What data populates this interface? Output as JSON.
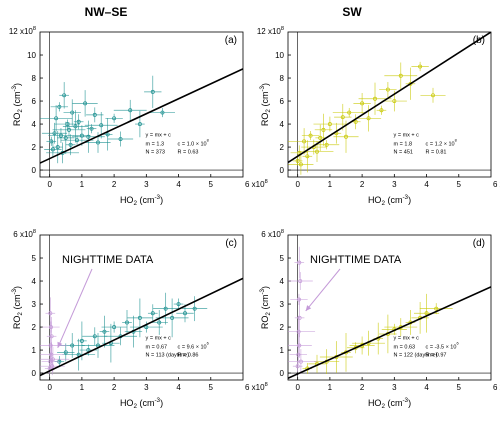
{
  "headers": {
    "left": "NW–SE",
    "right": "SW"
  },
  "colors": {
    "teal": "#1a8f8f",
    "yellow": "#c8c800",
    "night": "#c49ad8",
    "fit": "#000000"
  },
  "chart_data": [
    {
      "type": "scatter",
      "panel_label": "(a)",
      "xlabel_main": "HO",
      "xlabel_sub": "2",
      "xlabel_unit": "(cm",
      "xlabel_exp": "-3",
      "xlabel_close": ")",
      "ylabel_main": "RO",
      "ylabel_sub": "2",
      "ylabel_unit": "(cm",
      "ylabel_exp": "-3",
      "ylabel_close": ")",
      "x_multiplier": "6 x10",
      "x_mult_exp": "8",
      "y_multiplier": "12 x10",
      "y_mult_exp": "8",
      "xlim": [
        -0.3,
        6.0
      ],
      "ylim": [
        -0.6,
        12.0
      ],
      "xticks": [
        "0",
        "1",
        "2",
        "3",
        "4",
        "5"
      ],
      "xtick_vals": [
        0,
        1,
        2,
        3,
        4,
        5
      ],
      "yticks": [
        "0",
        "2",
        "4",
        "6",
        "8",
        "10"
      ],
      "ytick_vals": [
        0,
        2,
        4,
        6,
        8,
        10
      ],
      "fit": {
        "m": 1.3,
        "c": 1.0
      },
      "eq_text": "y = mx + c",
      "m_text": "m = 1.3",
      "c_text": "c = 1.0 × 10",
      "c_exp": "8",
      "n_text": "N = 373",
      "r_text": "R = 0.63",
      "series": [
        {
          "color_key": "teal",
          "points": [
            [
              0.05,
              2.5
            ],
            [
              0.1,
              1.8
            ],
            [
              0.15,
              3.2
            ],
            [
              0.2,
              4.5
            ],
            [
              0.25,
              2.0
            ],
            [
              0.3,
              5.5
            ],
            [
              0.35,
              3.0
            ],
            [
              0.4,
              1.5
            ],
            [
              0.45,
              6.5
            ],
            [
              0.5,
              2.8
            ],
            [
              0.55,
              4.0
            ],
            [
              0.6,
              3.5
            ],
            [
              0.65,
              2.2
            ],
            [
              0.7,
              5.0
            ],
            [
              0.8,
              3.8
            ],
            [
              0.85,
              2.6
            ],
            [
              0.9,
              4.2
            ],
            [
              1.0,
              3.0
            ],
            [
              1.1,
              5.8
            ],
            [
              1.2,
              2.9
            ],
            [
              1.3,
              3.6
            ],
            [
              1.4,
              4.8
            ],
            [
              1.5,
              2.4
            ],
            [
              1.6,
              3.9
            ],
            [
              1.8,
              3.1
            ],
            [
              2.0,
              4.5
            ],
            [
              2.2,
              2.7
            ],
            [
              2.5,
              5.2
            ],
            [
              2.8,
              4.0
            ],
            [
              3.2,
              6.8
            ],
            [
              3.5,
              5.0
            ]
          ]
        }
      ]
    },
    {
      "type": "scatter",
      "panel_label": "(b)",
      "xlabel_main": "HO",
      "xlabel_sub": "2",
      "xlabel_unit": "(cm",
      "xlabel_exp": "-3",
      "xlabel_close": ")",
      "ylabel_main": "RO",
      "ylabel_sub": "2",
      "ylabel_unit": "(cm",
      "ylabel_exp": "-3",
      "ylabel_close": ")",
      "x_multiplier": "6 x10",
      "x_mult_exp": "8",
      "y_multiplier": "12 x10",
      "y_mult_exp": "8",
      "xlim": [
        -0.3,
        6.0
      ],
      "ylim": [
        -0.6,
        12.0
      ],
      "xticks": [
        "0",
        "1",
        "2",
        "3",
        "4",
        "5"
      ],
      "xtick_vals": [
        0,
        1,
        2,
        3,
        4,
        5
      ],
      "yticks": [
        "0",
        "2",
        "4",
        "6",
        "8",
        "10"
      ],
      "ytick_vals": [
        0,
        2,
        4,
        6,
        8,
        10
      ],
      "fit": {
        "m": 1.8,
        "c": 1.2
      },
      "eq_text": "y = mx + c",
      "m_text": "m = 1.8",
      "c_text": "c = 1.2 × 10",
      "c_exp": "8",
      "n_text": "N = 451",
      "r_text": "R = 0.81",
      "series": [
        {
          "color_key": "yellow",
          "points": [
            [
              0.0,
              0.8
            ],
            [
              0.05,
              1.5
            ],
            [
              0.1,
              0.5
            ],
            [
              0.2,
              2.5
            ],
            [
              0.3,
              1.2
            ],
            [
              0.4,
              3.0
            ],
            [
              0.5,
              2.0
            ],
            [
              0.6,
              1.6
            ],
            [
              0.7,
              2.8
            ],
            [
              0.8,
              3.5
            ],
            [
              0.9,
              2.2
            ],
            [
              1.0,
              4.0
            ],
            [
              1.2,
              3.2
            ],
            [
              1.4,
              4.6
            ],
            [
              1.5,
              2.9
            ],
            [
              1.6,
              5.0
            ],
            [
              1.8,
              4.2
            ],
            [
              2.0,
              5.8
            ],
            [
              2.2,
              4.5
            ],
            [
              2.4,
              6.2
            ],
            [
              2.6,
              5.2
            ],
            [
              2.8,
              7.0
            ],
            [
              3.0,
              6.0
            ],
            [
              3.2,
              8.2
            ],
            [
              3.5,
              7.5
            ],
            [
              3.8,
              9.0
            ],
            [
              4.2,
              6.5
            ]
          ]
        }
      ]
    },
    {
      "type": "scatter",
      "panel_label": "(c)",
      "xlabel_main": "HO",
      "xlabel_sub": "2",
      "xlabel_unit": "(cm",
      "xlabel_exp": "-3",
      "xlabel_close": ")",
      "ylabel_main": "RO",
      "ylabel_sub": "2",
      "ylabel_unit": "(cm",
      "ylabel_exp": "-3",
      "ylabel_close": ")",
      "x_multiplier": "6 x10",
      "x_mult_exp": "8",
      "y_multiplier": "6 x10",
      "y_mult_exp": "8",
      "xlim": [
        -0.3,
        6.0
      ],
      "ylim": [
        -0.3,
        6.0
      ],
      "xticks": [
        "0",
        "1",
        "2",
        "3",
        "4",
        "5"
      ],
      "xtick_vals": [
        0,
        1,
        2,
        3,
        4,
        5
      ],
      "yticks": [
        "0",
        "1",
        "2",
        "3",
        "4",
        "5"
      ],
      "ytick_vals": [
        0,
        1,
        2,
        3,
        4,
        5
      ],
      "fit": {
        "m": 0.67,
        "c": 0.096
      },
      "eq_text": "y = mx + c",
      "m_text": "m = 0.67",
      "c_text": "c = 9.6 × 10",
      "c_exp": "6",
      "n_text": "N = 113 (daytime)",
      "r_text": "R = 0.86",
      "annotation": "NIGHTTIME DATA",
      "series": [
        {
          "color_key": "teal",
          "points": [
            [
              0.3,
              0.5
            ],
            [
              0.5,
              0.9
            ],
            [
              0.7,
              1.2
            ],
            [
              0.9,
              0.8
            ],
            [
              1.0,
              1.4
            ],
            [
              1.2,
              1.0
            ],
            [
              1.4,
              1.6
            ],
            [
              1.5,
              1.2
            ],
            [
              1.7,
              1.8
            ],
            [
              1.9,
              1.3
            ],
            [
              2.0,
              2.0
            ],
            [
              2.2,
              1.6
            ],
            [
              2.4,
              2.2
            ],
            [
              2.6,
              1.8
            ],
            [
              2.8,
              2.4
            ],
            [
              3.0,
              2.0
            ],
            [
              3.2,
              2.6
            ],
            [
              3.4,
              2.2
            ],
            [
              3.6,
              2.8
            ],
            [
              3.8,
              2.4
            ],
            [
              4.0,
              3.0
            ],
            [
              4.2,
              2.6
            ],
            [
              4.5,
              2.8
            ]
          ]
        },
        {
          "color_key": "night",
          "points": [
            [
              0.0,
              0.2
            ],
            [
              0.02,
              0.5
            ],
            [
              0.05,
              0.8
            ],
            [
              0.03,
              1.2
            ],
            [
              0.06,
              1.6
            ],
            [
              0.04,
              2.0
            ],
            [
              0.08,
              0.3
            ],
            [
              0.1,
              0.6
            ],
            [
              0.02,
              2.6
            ]
          ]
        }
      ]
    },
    {
      "type": "scatter",
      "panel_label": "(d)",
      "xlabel_main": "HO",
      "xlabel_sub": "2",
      "xlabel_unit": "(cm",
      "xlabel_exp": "-3",
      "xlabel_close": ")",
      "ylabel_main": "RO",
      "ylabel_sub": "2",
      "ylabel_unit": "(cm",
      "ylabel_exp": "-3",
      "ylabel_close": ")",
      "x_multiplier": "6 x10",
      "x_mult_exp": "8",
      "y_multiplier": "6 x10",
      "y_mult_exp": "8",
      "xlim": [
        -0.3,
        6.0
      ],
      "ylim": [
        -0.3,
        6.0
      ],
      "xticks": [
        "0",
        "1",
        "2",
        "3",
        "4",
        "5"
      ],
      "xtick_vals": [
        0,
        1,
        2,
        3,
        4,
        5
      ],
      "yticks": [
        "0",
        "1",
        "2",
        "3",
        "4",
        "5"
      ],
      "ytick_vals": [
        0,
        1,
        2,
        3,
        4,
        5
      ],
      "fit": {
        "m": 0.63,
        "c": -0.035
      },
      "eq_text": "y = mx + c",
      "m_text": "m = 0.63",
      "c_text": "c = -3.5 × 10",
      "c_exp": "6",
      "n_text": "N = 122 (daytime)",
      "r_text": "R = 0.97",
      "annotation": "NIGHTTIME DATA",
      "series": [
        {
          "color_key": "yellow",
          "points": [
            [
              0.3,
              0.2
            ],
            [
              0.6,
              0.4
            ],
            [
              0.9,
              0.5
            ],
            [
              1.2,
              0.7
            ],
            [
              1.5,
              0.9
            ],
            [
              1.8,
              1.1
            ],
            [
              2.0,
              1.2
            ],
            [
              2.2,
              1.3
            ],
            [
              2.5,
              1.5
            ],
            [
              2.8,
              1.7
            ],
            [
              3.0,
              1.9
            ],
            [
              3.2,
              2.0
            ],
            [
              3.5,
              2.2
            ],
            [
              3.8,
              2.4
            ],
            [
              4.0,
              2.6
            ],
            [
              4.3,
              2.8
            ]
          ]
        },
        {
          "color_key": "night",
          "points": [
            [
              0.0,
              0.3
            ],
            [
              0.02,
              0.8
            ],
            [
              0.05,
              1.2
            ],
            [
              0.03,
              1.8
            ],
            [
              0.06,
              2.4
            ],
            [
              0.04,
              3.2
            ],
            [
              0.08,
              4.0
            ],
            [
              0.1,
              0.5
            ],
            [
              0.05,
              4.8
            ]
          ]
        }
      ]
    }
  ]
}
